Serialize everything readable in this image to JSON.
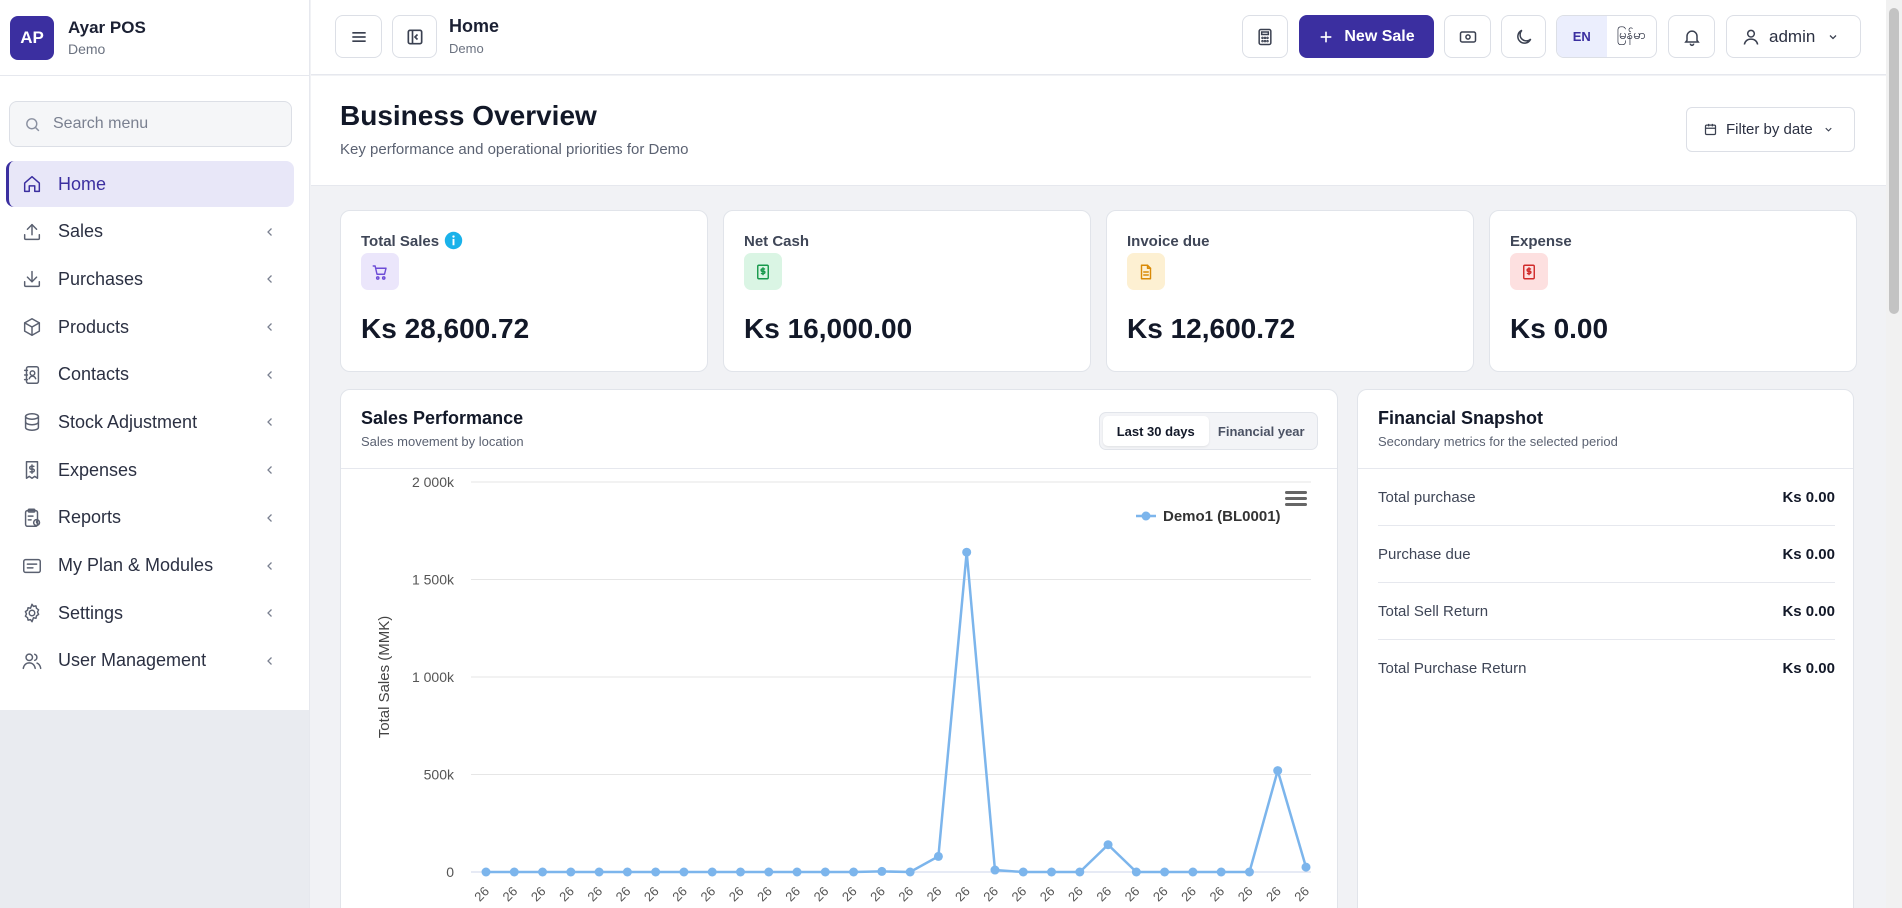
{
  "brand": {
    "initials": "AP",
    "name": "Ayar POS",
    "subtitle": "Demo"
  },
  "search": {
    "placeholder": "Search menu"
  },
  "nav": [
    {
      "label": "Home",
      "icon": "home-icon",
      "active": true
    },
    {
      "label": "Sales",
      "icon": "upload-icon"
    },
    {
      "label": "Purchases",
      "icon": "download-icon"
    },
    {
      "label": "Products",
      "icon": "box-icon"
    },
    {
      "label": "Contacts",
      "icon": "contacts-icon"
    },
    {
      "label": "Stock Adjustment",
      "icon": "database-icon"
    },
    {
      "label": "Expenses",
      "icon": "receipt-icon"
    },
    {
      "label": "Reports",
      "icon": "clipboard-icon"
    },
    {
      "label": "My Plan & Modules",
      "icon": "list-icon"
    },
    {
      "label": "Settings",
      "icon": "gear-icon"
    },
    {
      "label": "User Management",
      "icon": "users-icon"
    }
  ],
  "header": {
    "title": "Home",
    "subtitle": "Demo",
    "new_sale_label": "New Sale",
    "lang_en": "EN",
    "lang_my": "မြန်မာ",
    "user": "admin"
  },
  "page": {
    "title": "Business Overview",
    "subtitle": "Key performance and operational priorities for Demo",
    "filter_label": "Filter by date"
  },
  "stats": [
    {
      "label": "Total Sales",
      "value": "Ks 28,600.72",
      "color": "#6d4cd6",
      "bg": "#ebe6fb"
    },
    {
      "label": "Net Cash",
      "value": "Ks 16,000.00",
      "color": "#17994b",
      "bg": "#daf5e4"
    },
    {
      "label": "Invoice due",
      "value": "Ks 12,600.72",
      "color": "#d98a07",
      "bg": "#fdf0d2"
    },
    {
      "label": "Expense",
      "value": "Ks 0.00",
      "color": "#d12a2a",
      "bg": "#fde0e0"
    }
  ],
  "sales_perf": {
    "title": "Sales Performance",
    "subtitle": "Sales movement by location",
    "tab_30": "Last 30 days",
    "tab_fy": "Financial year"
  },
  "snapshot": {
    "title": "Financial Snapshot",
    "subtitle": "Secondary metrics for the selected period",
    "rows": [
      {
        "label": "Total purchase",
        "value": "Ks 0.00"
      },
      {
        "label": "Purchase due",
        "value": "Ks 0.00"
      },
      {
        "label": "Total Sell Return",
        "value": "Ks 0.00"
      },
      {
        "label": "Total Purchase Return",
        "value": "Ks 0.00"
      }
    ]
  },
  "chart_data": {
    "type": "line",
    "title": "",
    "ylabel": "Total Sales (MMK)",
    "ylim": [
      0,
      2000000
    ],
    "y_ticks": [
      "0",
      "500k",
      "1 000k",
      "1 500k",
      "2 000k"
    ],
    "x_tick_label": "26",
    "legend_position": "top-right",
    "grid": true,
    "color": "#7cb5ec",
    "series": [
      {
        "name": "Demo1 (BL0001)",
        "values": [
          0,
          0,
          0,
          0,
          0,
          0,
          0,
          0,
          0,
          0,
          0,
          0,
          0,
          0,
          3000,
          0,
          80000,
          1640000,
          10000,
          0,
          0,
          0,
          140000,
          0,
          0,
          0,
          0,
          0,
          520000,
          25000
        ]
      }
    ]
  }
}
